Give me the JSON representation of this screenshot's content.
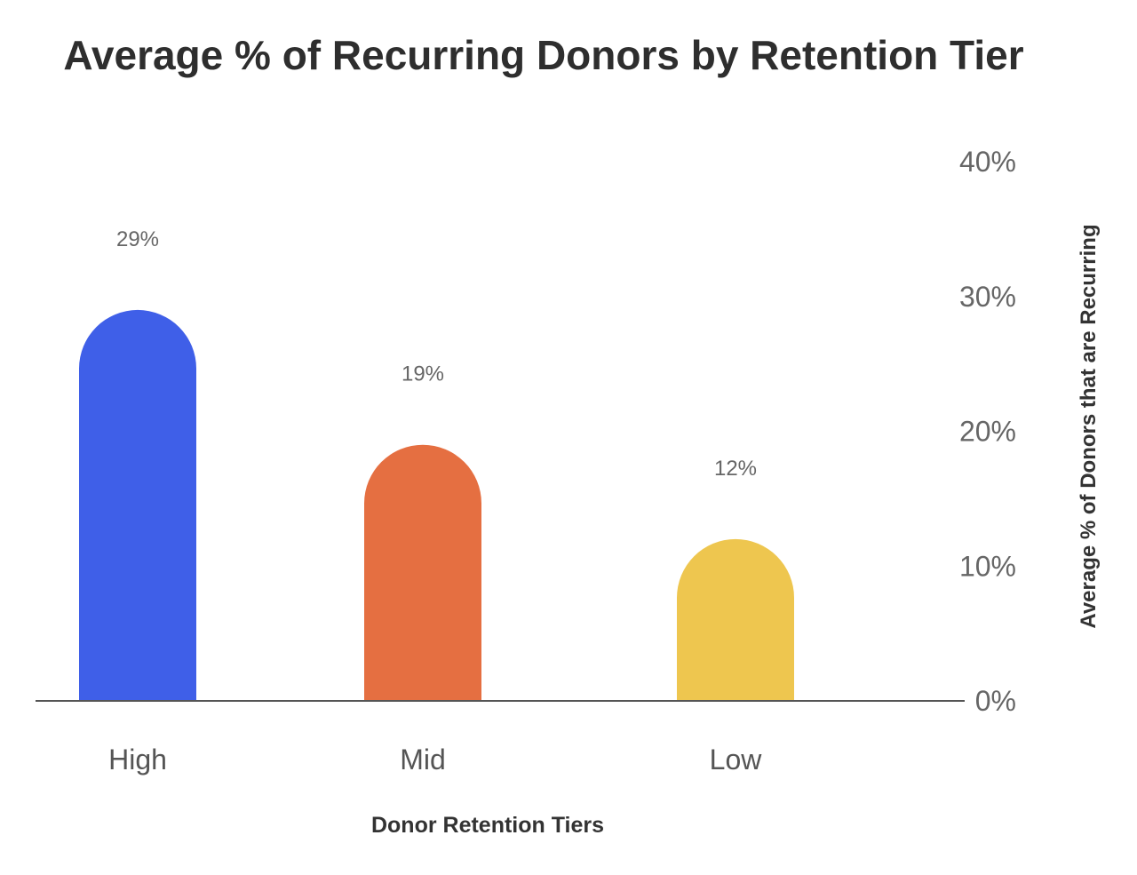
{
  "chart_data": {
    "type": "bar",
    "title": "Average % of Recurring Donors by Retention Tier",
    "xlabel": "Donor Retention Tiers",
    "ylabel": "Average % of Donors that are Recurring",
    "categories": [
      "High",
      "Mid",
      "Low"
    ],
    "values": [
      29,
      19,
      12
    ],
    "data_labels": [
      "29%",
      "19%",
      "12%"
    ],
    "bar_colors": [
      "#3f5fe8",
      "#e56f41",
      "#eec64f"
    ],
    "y_axis_position": "right",
    "y_ticks": [
      {
        "value": 0,
        "label": "0%"
      },
      {
        "value": 10,
        "label": "10%"
      },
      {
        "value": 20,
        "label": "20%"
      },
      {
        "value": 30,
        "label": "30%"
      },
      {
        "value": 40,
        "label": "40%"
      }
    ],
    "ylim": [
      0,
      40
    ],
    "grid": false,
    "legend": "none"
  }
}
